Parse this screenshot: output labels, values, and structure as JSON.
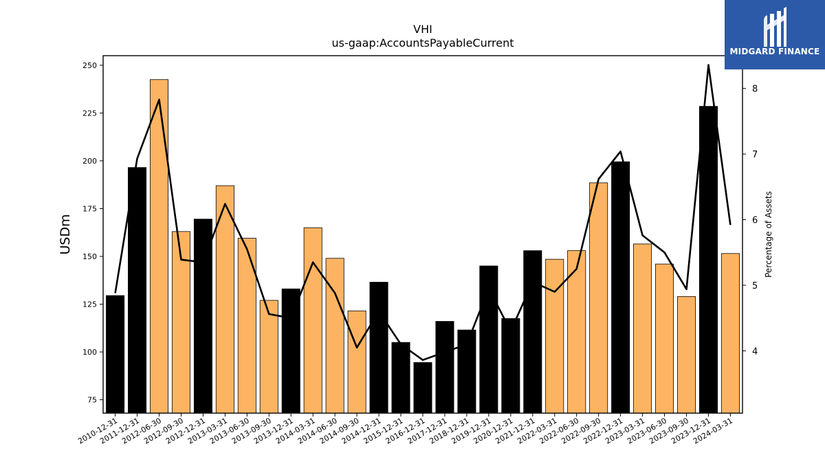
{
  "chart_data": {
    "type": "bar",
    "title": "VHI",
    "subtitle": "us-gaap:AccountsPayableCurrent",
    "ylabel": "USDm",
    "y2label": "Percentage of Assets",
    "ylim": [
      68,
      255
    ],
    "y2lim": [
      3.05,
      8.5
    ],
    "yticks": [
      75,
      100,
      125,
      150,
      175,
      200,
      225,
      250
    ],
    "y2ticks": [
      4,
      5,
      6,
      7,
      8
    ],
    "categories": [
      "2010-12-31",
      "2011-12-31",
      "2012-06-30",
      "2012-09-30",
      "2012-12-31",
      "2013-03-31",
      "2013-06-30",
      "2013-09-30",
      "2013-12-31",
      "2014-03-31",
      "2014-06-30",
      "2014-09-30",
      "2014-12-31",
      "2015-12-31",
      "2016-12-31",
      "2017-12-31",
      "2018-12-31",
      "2019-12-31",
      "2020-12-31",
      "2021-12-31",
      "2022-03-31",
      "2022-06-30",
      "2022-09-30",
      "2022-12-31",
      "2023-03-31",
      "2023-06-30",
      "2023-09-30",
      "2023-12-31",
      "2024-03-31"
    ],
    "series": [
      {
        "type": "bar",
        "values": [
          129.5,
          196.5,
          242.5,
          163,
          169.5,
          187,
          159.5,
          127,
          133,
          165,
          149,
          121.5,
          136.5,
          105,
          94.5,
          116,
          111.5,
          145,
          117.5,
          153,
          148.5,
          153,
          188.5,
          199.5,
          156.5,
          146,
          129,
          228.5,
          151.5
        ],
        "colors": [
          "#000000",
          "#000000",
          "#fdb462",
          "#fdb462",
          "#000000",
          "#fdb462",
          "#fdb462",
          "#fdb462",
          "#000000",
          "#fdb462",
          "#fdb462",
          "#fdb462",
          "#000000",
          "#000000",
          "#000000",
          "#000000",
          "#000000",
          "#000000",
          "#000000",
          "#000000",
          "#fdb462",
          "#fdb462",
          "#fdb462",
          "#000000",
          "#fdb462",
          "#fdb462",
          "#fdb462",
          "#000000",
          "#fdb462"
        ]
      },
      {
        "type": "line",
        "axis": "right",
        "values": [
          4.88,
          6.93,
          7.83,
          5.39,
          5.35,
          6.24,
          5.55,
          4.56,
          4.5,
          5.35,
          4.88,
          4.05,
          4.6,
          4.1,
          3.86,
          3.98,
          4.1,
          4.95,
          4.3,
          5.05,
          4.9,
          5.25,
          6.62,
          7.04,
          5.76,
          5.5,
          4.94,
          8.36,
          5.92
        ],
        "color": "#000000"
      }
    ],
    "grid": false
  },
  "logo": {
    "text": "MIDGARD FINANCE",
    "color": "#2d5aa8"
  }
}
